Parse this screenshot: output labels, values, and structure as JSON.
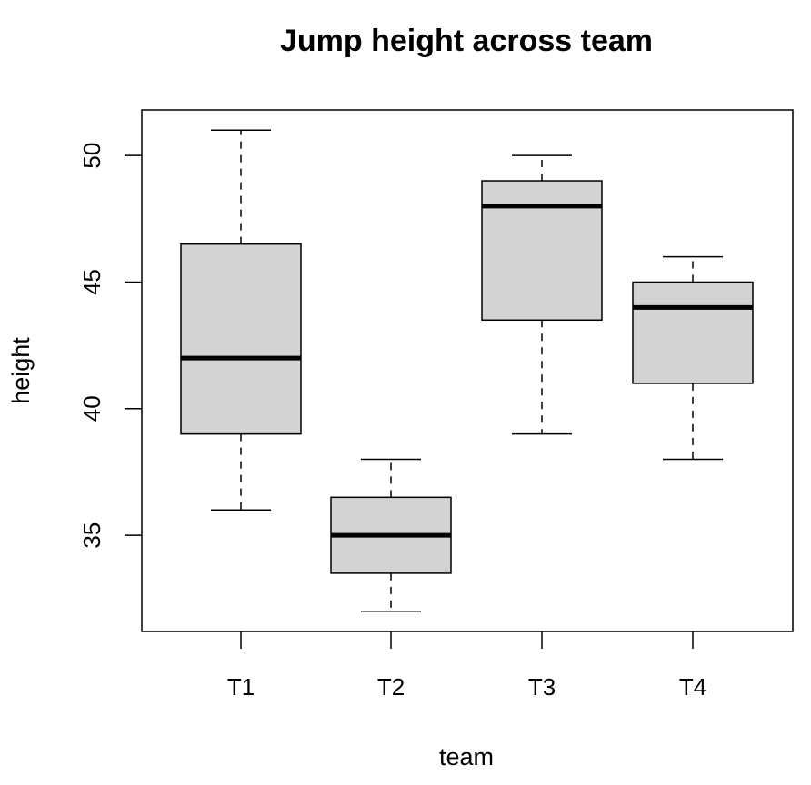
{
  "chart_data": {
    "type": "boxplot",
    "title": "Jump height across team",
    "xlabel": "team",
    "ylabel": "height",
    "categories": [
      "T1",
      "T2",
      "T3",
      "T4"
    ],
    "boxes": [
      {
        "category": "T1",
        "whisker_low": 36,
        "q1": 39,
        "median": 42,
        "q3": 46.5,
        "whisker_high": 51
      },
      {
        "category": "T2",
        "whisker_low": 32,
        "q1": 33.5,
        "median": 35,
        "q3": 36.5,
        "whisker_high": 38
      },
      {
        "category": "T3",
        "whisker_low": 39,
        "q1": 43.5,
        "median": 48,
        "q3": 49,
        "whisker_high": 50
      },
      {
        "category": "T4",
        "whisker_low": 38,
        "q1": 41,
        "median": 44,
        "q3": 45,
        "whisker_high": 46
      }
    ],
    "yticks": [
      35,
      40,
      45,
      50
    ],
    "ylim": [
      31.2,
      51.8
    ],
    "grid": false,
    "box_fill": "#d3d3d3"
  }
}
